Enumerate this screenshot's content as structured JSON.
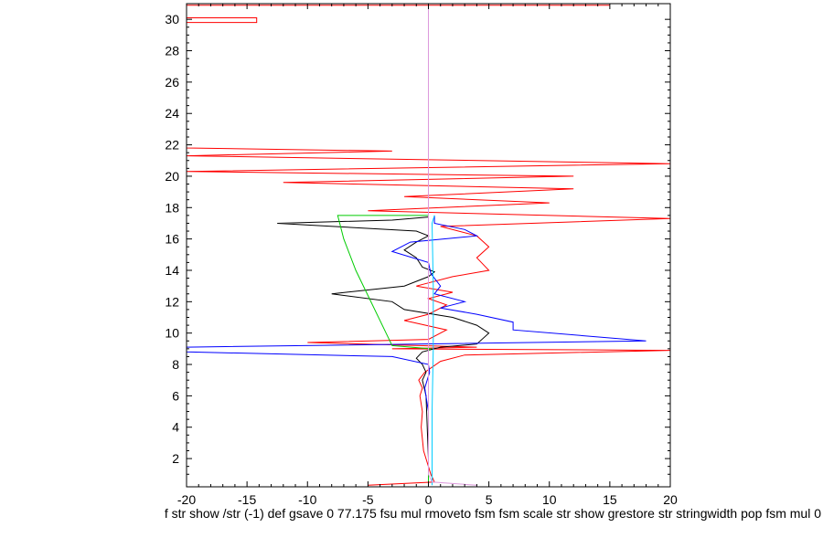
{
  "chart_data": {
    "type": "line",
    "xlim": [
      -20,
      20
    ],
    "ylim": [
      0.2,
      31
    ],
    "x_ticks": [
      -20,
      -15,
      -10,
      -5,
      0,
      5,
      10,
      15,
      20
    ],
    "y_ticks": [
      2,
      4,
      6,
      8,
      10,
      12,
      14,
      16,
      18,
      20,
      22,
      24,
      26,
      28,
      30
    ],
    "grid": false,
    "legend": "none",
    "caption": "f str show /str (-1) def gsave 0 77.175 fsu mul rmoveto fsm fsm scale str show grestore str stringwidth pop fsm mul 0",
    "series": [
      {
        "color": "#ff0000",
        "points": [
          [
            -5,
            0.3
          ],
          [
            0.5,
            0.5
          ],
          [
            0.2,
            1.0
          ],
          [
            0,
            1.5
          ],
          [
            -0.4,
            2.5
          ],
          [
            -0.6,
            4
          ],
          [
            -0.5,
            5
          ],
          [
            -0.7,
            6
          ],
          [
            -0.5,
            6.5
          ],
          [
            -0.8,
            7.0
          ],
          [
            -0.3,
            7.5
          ],
          [
            1.0,
            8.2
          ],
          [
            3,
            8.6
          ],
          [
            20,
            8.9
          ],
          [
            -3,
            9.0
          ],
          [
            4,
            9.1
          ],
          [
            -10,
            9.4
          ],
          [
            0,
            9.6
          ],
          [
            1.5,
            10.2
          ],
          [
            -2,
            10.8
          ],
          [
            0,
            11.2
          ],
          [
            1.5,
            11.8
          ],
          [
            0,
            12.2
          ],
          [
            2,
            12.6
          ],
          [
            -1,
            13.0
          ],
          [
            2,
            13.6
          ],
          [
            5,
            14.0
          ],
          [
            4,
            14.8
          ],
          [
            5,
            15.5
          ],
          [
            4,
            16.2
          ],
          [
            1,
            16.8
          ],
          [
            20,
            17.3
          ],
          [
            -5,
            17.8
          ],
          [
            10,
            18.3
          ],
          [
            -2,
            18.7
          ],
          [
            12,
            19.2
          ],
          [
            -12,
            19.6
          ],
          [
            12,
            20.0
          ],
          [
            -20,
            20.3
          ],
          [
            20,
            20.8
          ],
          [
            -20,
            21.3
          ],
          [
            -3,
            21.6
          ],
          [
            -20,
            21.8
          ],
          [
            -20,
            29.8
          ],
          [
            -14.2,
            29.8
          ],
          [
            -14.2,
            30.1
          ],
          [
            -20,
            30.1
          ],
          [
            -20,
            30.9
          ],
          [
            15,
            30.9
          ]
        ]
      },
      {
        "color": "#000000",
        "points": [
          [
            0,
            0.5
          ],
          [
            0,
            2
          ],
          [
            -0.1,
            4
          ],
          [
            -0.2,
            6
          ],
          [
            -0.5,
            7.0
          ],
          [
            -0.2,
            7.5
          ],
          [
            -0.5,
            8.0
          ],
          [
            -1.0,
            8.4
          ],
          [
            -0.5,
            8.8
          ],
          [
            1,
            9.1
          ],
          [
            4,
            9.3
          ],
          [
            5,
            10
          ],
          [
            4,
            10.5
          ],
          [
            2,
            11.0
          ],
          [
            -2,
            11.5
          ],
          [
            -3,
            12.0
          ],
          [
            -8,
            12.5
          ],
          [
            -2,
            13.0
          ],
          [
            0,
            13.6
          ],
          [
            0.5,
            13.9
          ],
          [
            -0.5,
            14.2
          ],
          [
            -1,
            14.8
          ],
          [
            -2,
            15.3
          ],
          [
            -1,
            15.8
          ],
          [
            0,
            16.2
          ],
          [
            -1,
            16.5
          ],
          [
            -12.5,
            17.0
          ],
          [
            -3,
            17.2
          ],
          [
            0,
            17.4
          ]
        ]
      },
      {
        "color": "#0000ff",
        "points": [
          [
            0,
            0.4
          ],
          [
            0,
            2
          ],
          [
            0,
            5
          ],
          [
            -0.3,
            6.5
          ],
          [
            0.1,
            7.5
          ],
          [
            0,
            8.0
          ],
          [
            -3,
            8.5
          ],
          [
            -20,
            8.8
          ],
          [
            -20,
            9.1
          ],
          [
            18,
            9.5
          ],
          [
            7,
            10.2
          ],
          [
            7,
            10.7
          ],
          [
            4,
            11.2
          ],
          [
            1,
            11.6
          ],
          [
            3,
            12.0
          ],
          [
            0.5,
            12.5
          ],
          [
            1,
            13.0
          ],
          [
            0.2,
            13.8
          ],
          [
            0,
            14.5
          ],
          [
            -3,
            15.2
          ],
          [
            -1.5,
            15.8
          ],
          [
            4,
            16.2
          ],
          [
            3,
            16.6
          ],
          [
            0.5,
            17.0
          ],
          [
            0.5,
            17.5
          ]
        ]
      },
      {
        "color": "#00cc00",
        "points": [
          [
            0,
            0.5
          ],
          [
            0,
            8.9
          ],
          [
            0.2,
            9.0
          ],
          [
            -3,
            9.2
          ],
          [
            -3.5,
            10
          ],
          [
            -6,
            14
          ],
          [
            -7,
            16
          ],
          [
            -7.5,
            17.5
          ],
          [
            0,
            17.5
          ]
        ]
      },
      {
        "color": "#00ccff",
        "points": [
          [
            0.3,
            0.3
          ],
          [
            0.3,
            5
          ],
          [
            0.4,
            9
          ],
          [
            0.4,
            13
          ],
          [
            0.3,
            17
          ],
          [
            0.5,
            17.5
          ]
        ]
      },
      {
        "color": "#dd99dd",
        "points": [
          [
            4,
            0.3
          ],
          [
            0.3,
            0.5
          ],
          [
            0,
            1
          ],
          [
            0,
            31
          ]
        ]
      }
    ]
  }
}
